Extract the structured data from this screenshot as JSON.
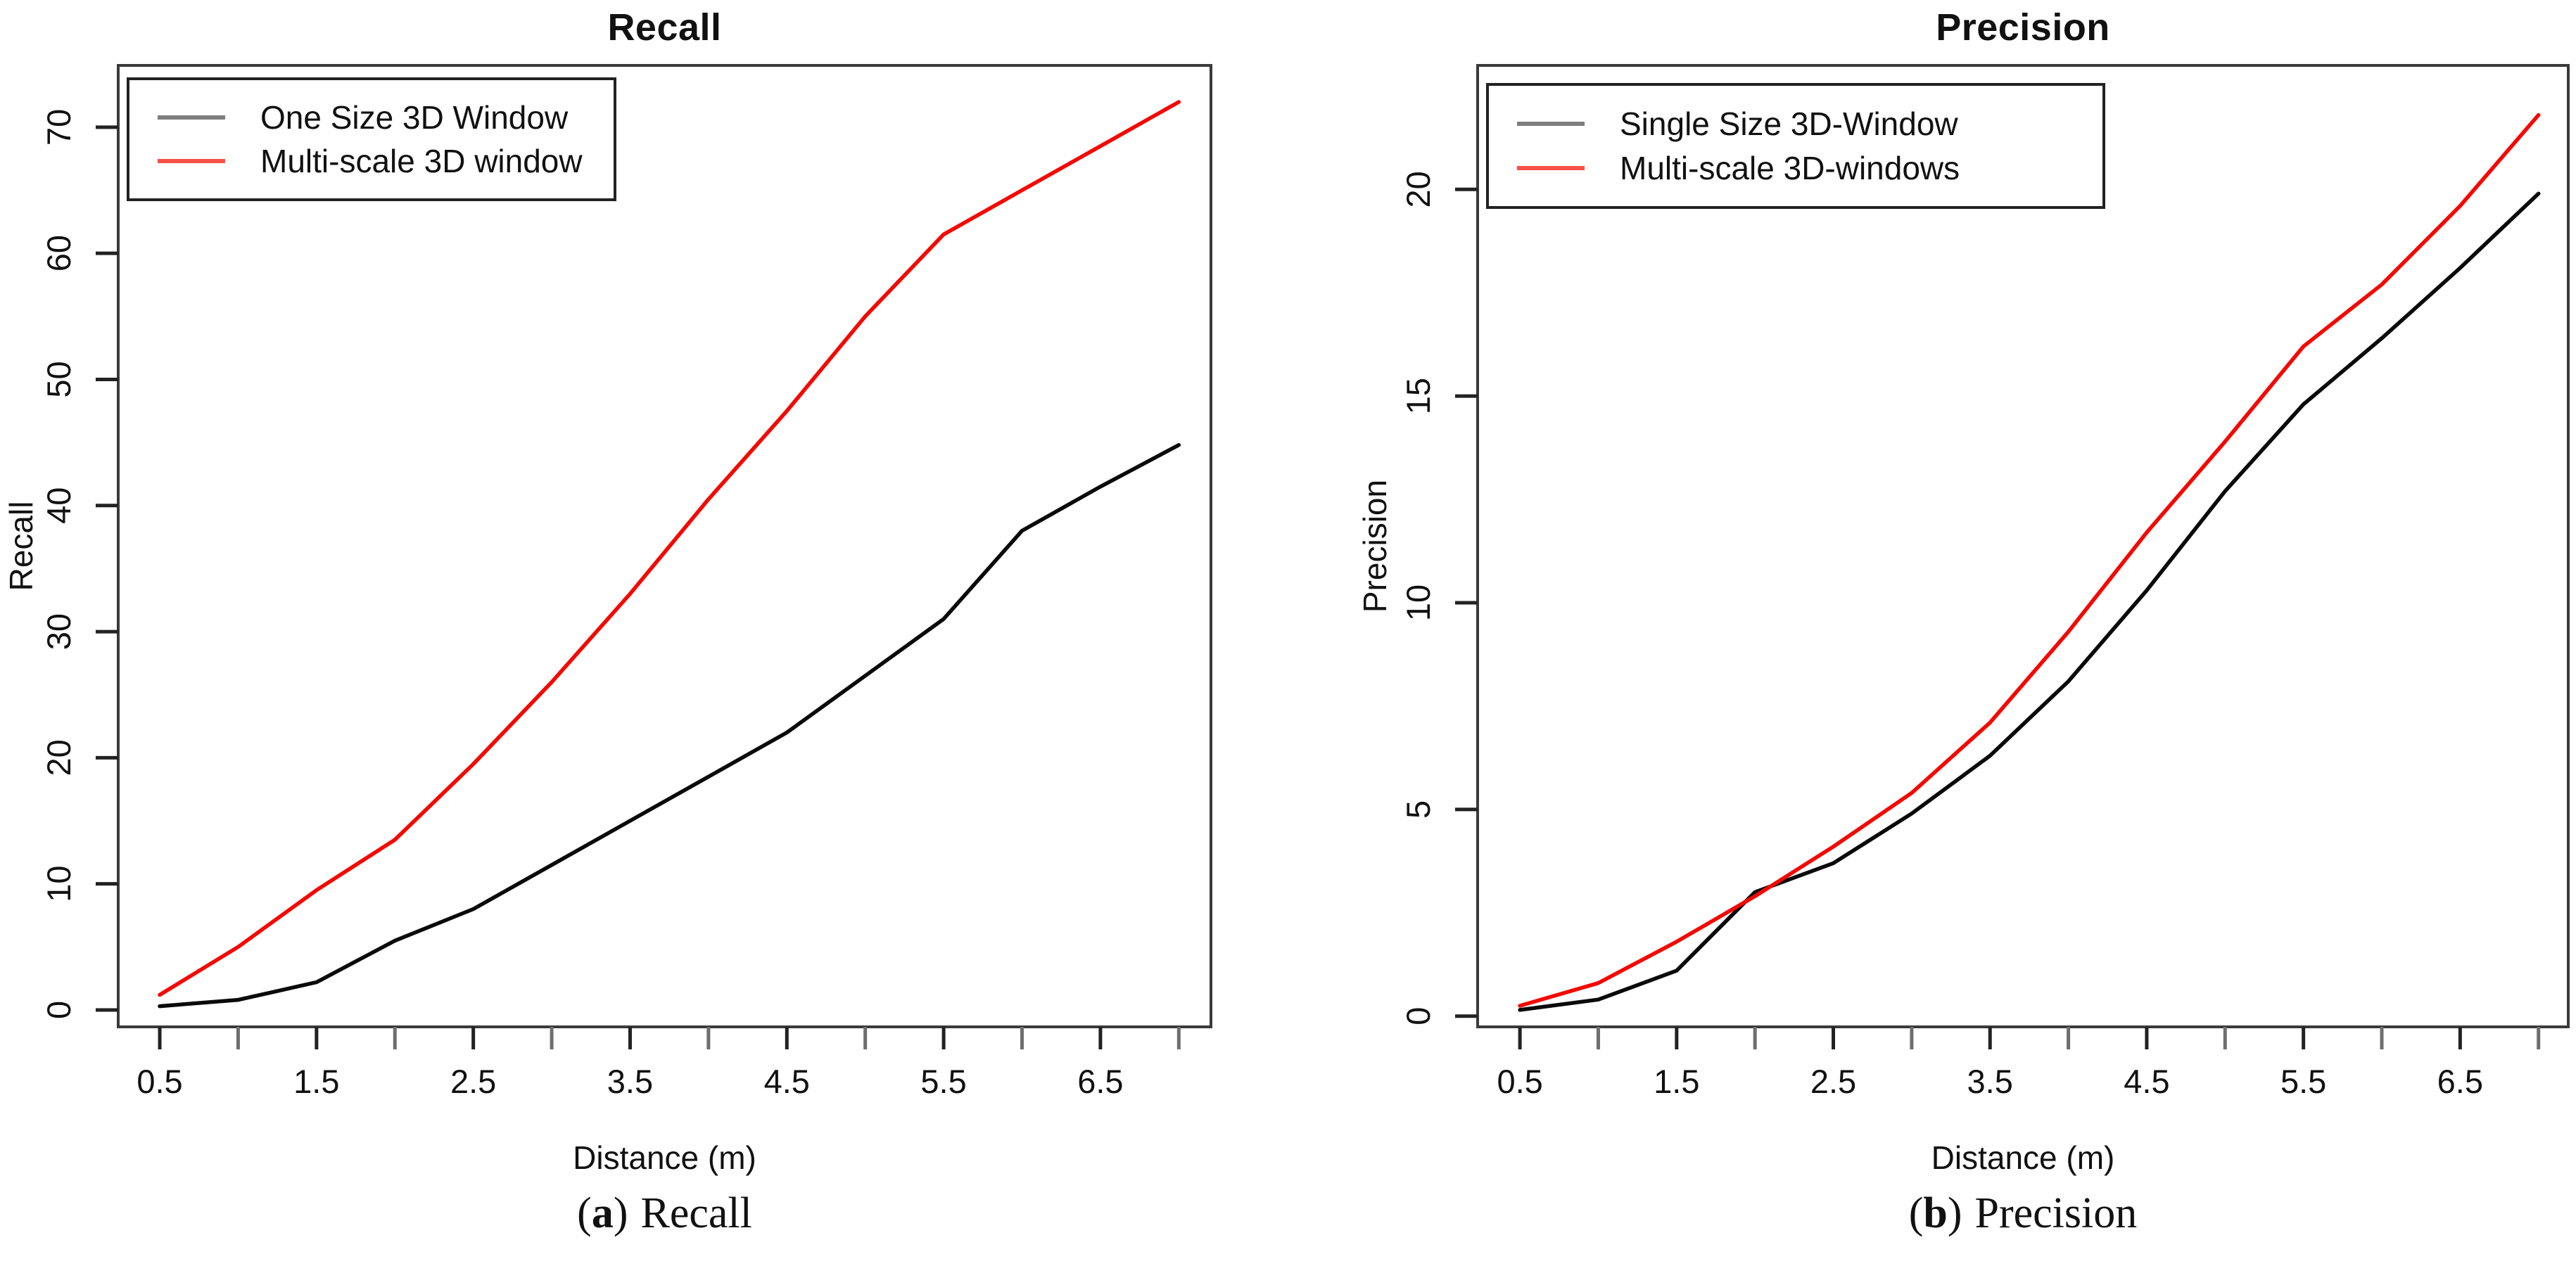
{
  "page": {
    "background": "#ffffff"
  },
  "captions": [
    {
      "open": "(",
      "letter": "a",
      "close": ")",
      "text": "Recall"
    },
    {
      "open": "(",
      "letter": "b",
      "close": ")",
      "text": "Precision"
    }
  ],
  "chart_data": [
    {
      "type": "line",
      "title": "Recall",
      "xlabel": "Distance (m)",
      "ylabel": "Recall",
      "x": [
        0.5,
        1.0,
        1.5,
        2.0,
        2.5,
        3.0,
        3.5,
        4.0,
        4.5,
        5.0,
        5.5,
        6.0,
        6.5,
        7.0
      ],
      "series": [
        {
          "name": "One Size 3D Window",
          "color": "#0a0a0a",
          "legend_color": "#7e7e7e",
          "values": [
            0.3,
            0.8,
            2.2,
            5.5,
            8.0,
            11.5,
            15.0,
            18.5,
            22.0,
            26.5,
            31.0,
            38.0,
            41.5,
            44.8
          ]
        },
        {
          "name": "Multi-scale 3D window",
          "color": "#f30900",
          "legend_color": "#f85047",
          "values": [
            1.2,
            5.0,
            9.5,
            13.5,
            19.5,
            26.0,
            33.0,
            40.5,
            47.5,
            55.0,
            61.5,
            65.0,
            68.5,
            72.0
          ]
        }
      ],
      "xticks": [
        0.5,
        1.0,
        1.5,
        2.0,
        2.5,
        3.0,
        3.5,
        4.0,
        4.5,
        5.0,
        5.5,
        6.0,
        6.5,
        7.0
      ],
      "xtick_labels": [
        "0.5",
        "",
        "1.5",
        "",
        "2.5",
        "",
        "3.5",
        "",
        "4.5",
        "",
        "5.5",
        "",
        "6.5",
        ""
      ],
      "yticks": [
        0,
        10,
        20,
        30,
        40,
        50,
        60,
        70
      ],
      "ytick_labels": [
        "0",
        "10",
        "20",
        "30",
        "40",
        "50",
        "60",
        "70"
      ],
      "xlim": [
        0.235,
        7.205
      ],
      "ylim": [
        -1.34,
        74.9
      ],
      "grid": false,
      "legend_position": "top-left"
    },
    {
      "type": "line",
      "title": "Precision",
      "xlabel": "Distance (m)",
      "ylabel": "Precision",
      "x": [
        0.5,
        1.0,
        1.5,
        2.0,
        2.5,
        3.0,
        3.5,
        4.0,
        4.5,
        5.0,
        5.5,
        6.0,
        6.5,
        7.0
      ],
      "series": [
        {
          "name": "Single Size 3D-Window",
          "color": "#0a0a0a",
          "legend_color": "#7e7e7e",
          "values": [
            0.15,
            0.4,
            1.1,
            3.0,
            3.7,
            4.9,
            6.3,
            8.1,
            10.3,
            12.7,
            14.8,
            16.4,
            18.1,
            19.9
          ]
        },
        {
          "name": "Multi-scale 3D-windows",
          "color": "#f30900",
          "legend_color": "#f85047",
          "values": [
            0.25,
            0.8,
            1.8,
            2.9,
            4.1,
            5.4,
            7.1,
            9.3,
            11.7,
            13.9,
            16.2,
            17.7,
            19.6,
            21.8
          ]
        }
      ],
      "xticks": [
        0.5,
        1.0,
        1.5,
        2.0,
        2.5,
        3.0,
        3.5,
        4.0,
        4.5,
        5.0,
        5.5,
        6.0,
        6.5,
        7.0
      ],
      "xtick_labels": [
        "0.5",
        "",
        "1.5",
        "",
        "2.5",
        "",
        "3.5",
        "",
        "4.5",
        "",
        "5.5",
        "",
        "6.5",
        ""
      ],
      "yticks": [
        0,
        5,
        10,
        15,
        20
      ],
      "ytick_labels": [
        "0",
        "5",
        "10",
        "15",
        "20"
      ],
      "xlim": [
        0.23,
        7.19
      ],
      "ylim": [
        -0.26,
        23.0
      ],
      "grid": false,
      "legend_position": "top-left"
    }
  ]
}
